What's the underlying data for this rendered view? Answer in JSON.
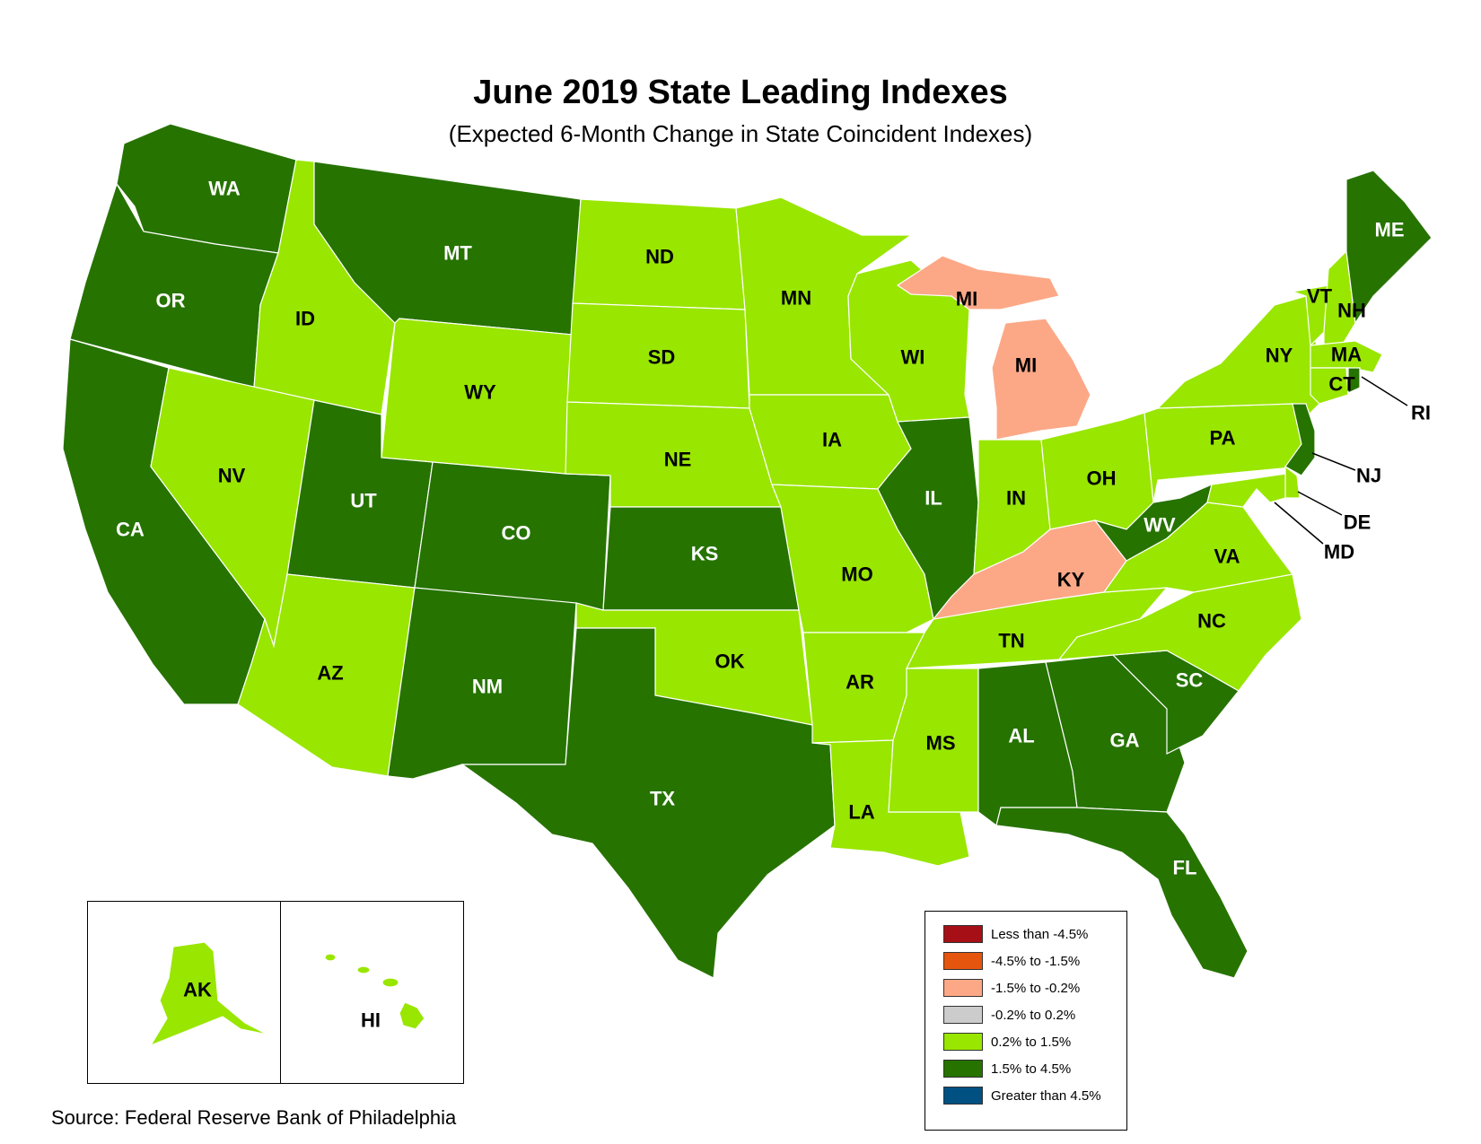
{
  "title": "June 2019 State Leading Indexes",
  "subtitle": "(Expected 6-Month Change in State Coincident Indexes)",
  "source": "Source: Federal Reserve Bank of Philadelphia",
  "legend": [
    {
      "label": "Less than -4.5%",
      "color": "#a50f15"
    },
    {
      "label": "-4.5% to -1.5%",
      "color": "#e6550d"
    },
    {
      "label": "-1.5% to -0.2%",
      "color": "#fca887"
    },
    {
      "label": "-0.2% to 0.2%",
      "color": "#cccccc"
    },
    {
      "label": "0.2% to 1.5%",
      "color": "#99e600"
    },
    {
      "label": "1.5% to 4.5%",
      "color": "#267300"
    },
    {
      "label": "Greater than 4.5%",
      "color": "#005082"
    }
  ],
  "map_data": {
    "category_colors": {
      "0.2% to 1.5%": "#99e600",
      "1.5% to 4.5%": "#267300",
      "-1.5% to -0.2%": "#fca887"
    },
    "states": [
      {
        "code": "WA",
        "category": "1.5% to 4.5%"
      },
      {
        "code": "OR",
        "category": "1.5% to 4.5%"
      },
      {
        "code": "CA",
        "category": "1.5% to 4.5%"
      },
      {
        "code": "ID",
        "category": "0.2% to 1.5%"
      },
      {
        "code": "NV",
        "category": "0.2% to 1.5%"
      },
      {
        "code": "MT",
        "category": "1.5% to 4.5%"
      },
      {
        "code": "WY",
        "category": "0.2% to 1.5%"
      },
      {
        "code": "UT",
        "category": "1.5% to 4.5%"
      },
      {
        "code": "AZ",
        "category": "0.2% to 1.5%"
      },
      {
        "code": "CO",
        "category": "1.5% to 4.5%"
      },
      {
        "code": "NM",
        "category": "1.5% to 4.5%"
      },
      {
        "code": "ND",
        "category": "0.2% to 1.5%"
      },
      {
        "code": "SD",
        "category": "0.2% to 1.5%"
      },
      {
        "code": "NE",
        "category": "0.2% to 1.5%"
      },
      {
        "code": "KS",
        "category": "1.5% to 4.5%"
      },
      {
        "code": "OK",
        "category": "0.2% to 1.5%"
      },
      {
        "code": "TX",
        "category": "1.5% to 4.5%"
      },
      {
        "code": "MN",
        "category": "0.2% to 1.5%"
      },
      {
        "code": "IA",
        "category": "0.2% to 1.5%"
      },
      {
        "code": "MO",
        "category": "0.2% to 1.5%"
      },
      {
        "code": "AR",
        "category": "0.2% to 1.5%"
      },
      {
        "code": "LA",
        "category": "0.2% to 1.5%"
      },
      {
        "code": "WI",
        "category": "0.2% to 1.5%"
      },
      {
        "code": "IL",
        "category": "1.5% to 4.5%"
      },
      {
        "code": "MI",
        "category": "-1.5% to -0.2%"
      },
      {
        "code": "IN",
        "category": "0.2% to 1.5%"
      },
      {
        "code": "OH",
        "category": "0.2% to 1.5%"
      },
      {
        "code": "KY",
        "category": "-1.5% to -0.2%"
      },
      {
        "code": "TN",
        "category": "0.2% to 1.5%"
      },
      {
        "code": "MS",
        "category": "0.2% to 1.5%"
      },
      {
        "code": "AL",
        "category": "1.5% to 4.5%"
      },
      {
        "code": "GA",
        "category": "1.5% to 4.5%"
      },
      {
        "code": "FL",
        "category": "1.5% to 4.5%"
      },
      {
        "code": "SC",
        "category": "1.5% to 4.5%"
      },
      {
        "code": "NC",
        "category": "0.2% to 1.5%"
      },
      {
        "code": "VA",
        "category": "0.2% to 1.5%"
      },
      {
        "code": "WV",
        "category": "1.5% to 4.5%"
      },
      {
        "code": "PA",
        "category": "0.2% to 1.5%"
      },
      {
        "code": "NY",
        "category": "0.2% to 1.5%"
      },
      {
        "code": "VT",
        "category": "0.2% to 1.5%"
      },
      {
        "code": "NH",
        "category": "0.2% to 1.5%"
      },
      {
        "code": "ME",
        "category": "1.5% to 4.5%"
      },
      {
        "code": "MA",
        "category": "0.2% to 1.5%"
      },
      {
        "code": "CT",
        "category": "0.2% to 1.5%"
      },
      {
        "code": "RI",
        "category": "1.5% to 4.5%"
      },
      {
        "code": "NJ",
        "category": "1.5% to 4.5%"
      },
      {
        "code": "DE",
        "category": "0.2% to 1.5%"
      },
      {
        "code": "MD",
        "category": "0.2% to 1.5%"
      },
      {
        "code": "AK",
        "category": "0.2% to 1.5%"
      },
      {
        "code": "HI",
        "category": "0.2% to 1.5%"
      }
    ]
  }
}
